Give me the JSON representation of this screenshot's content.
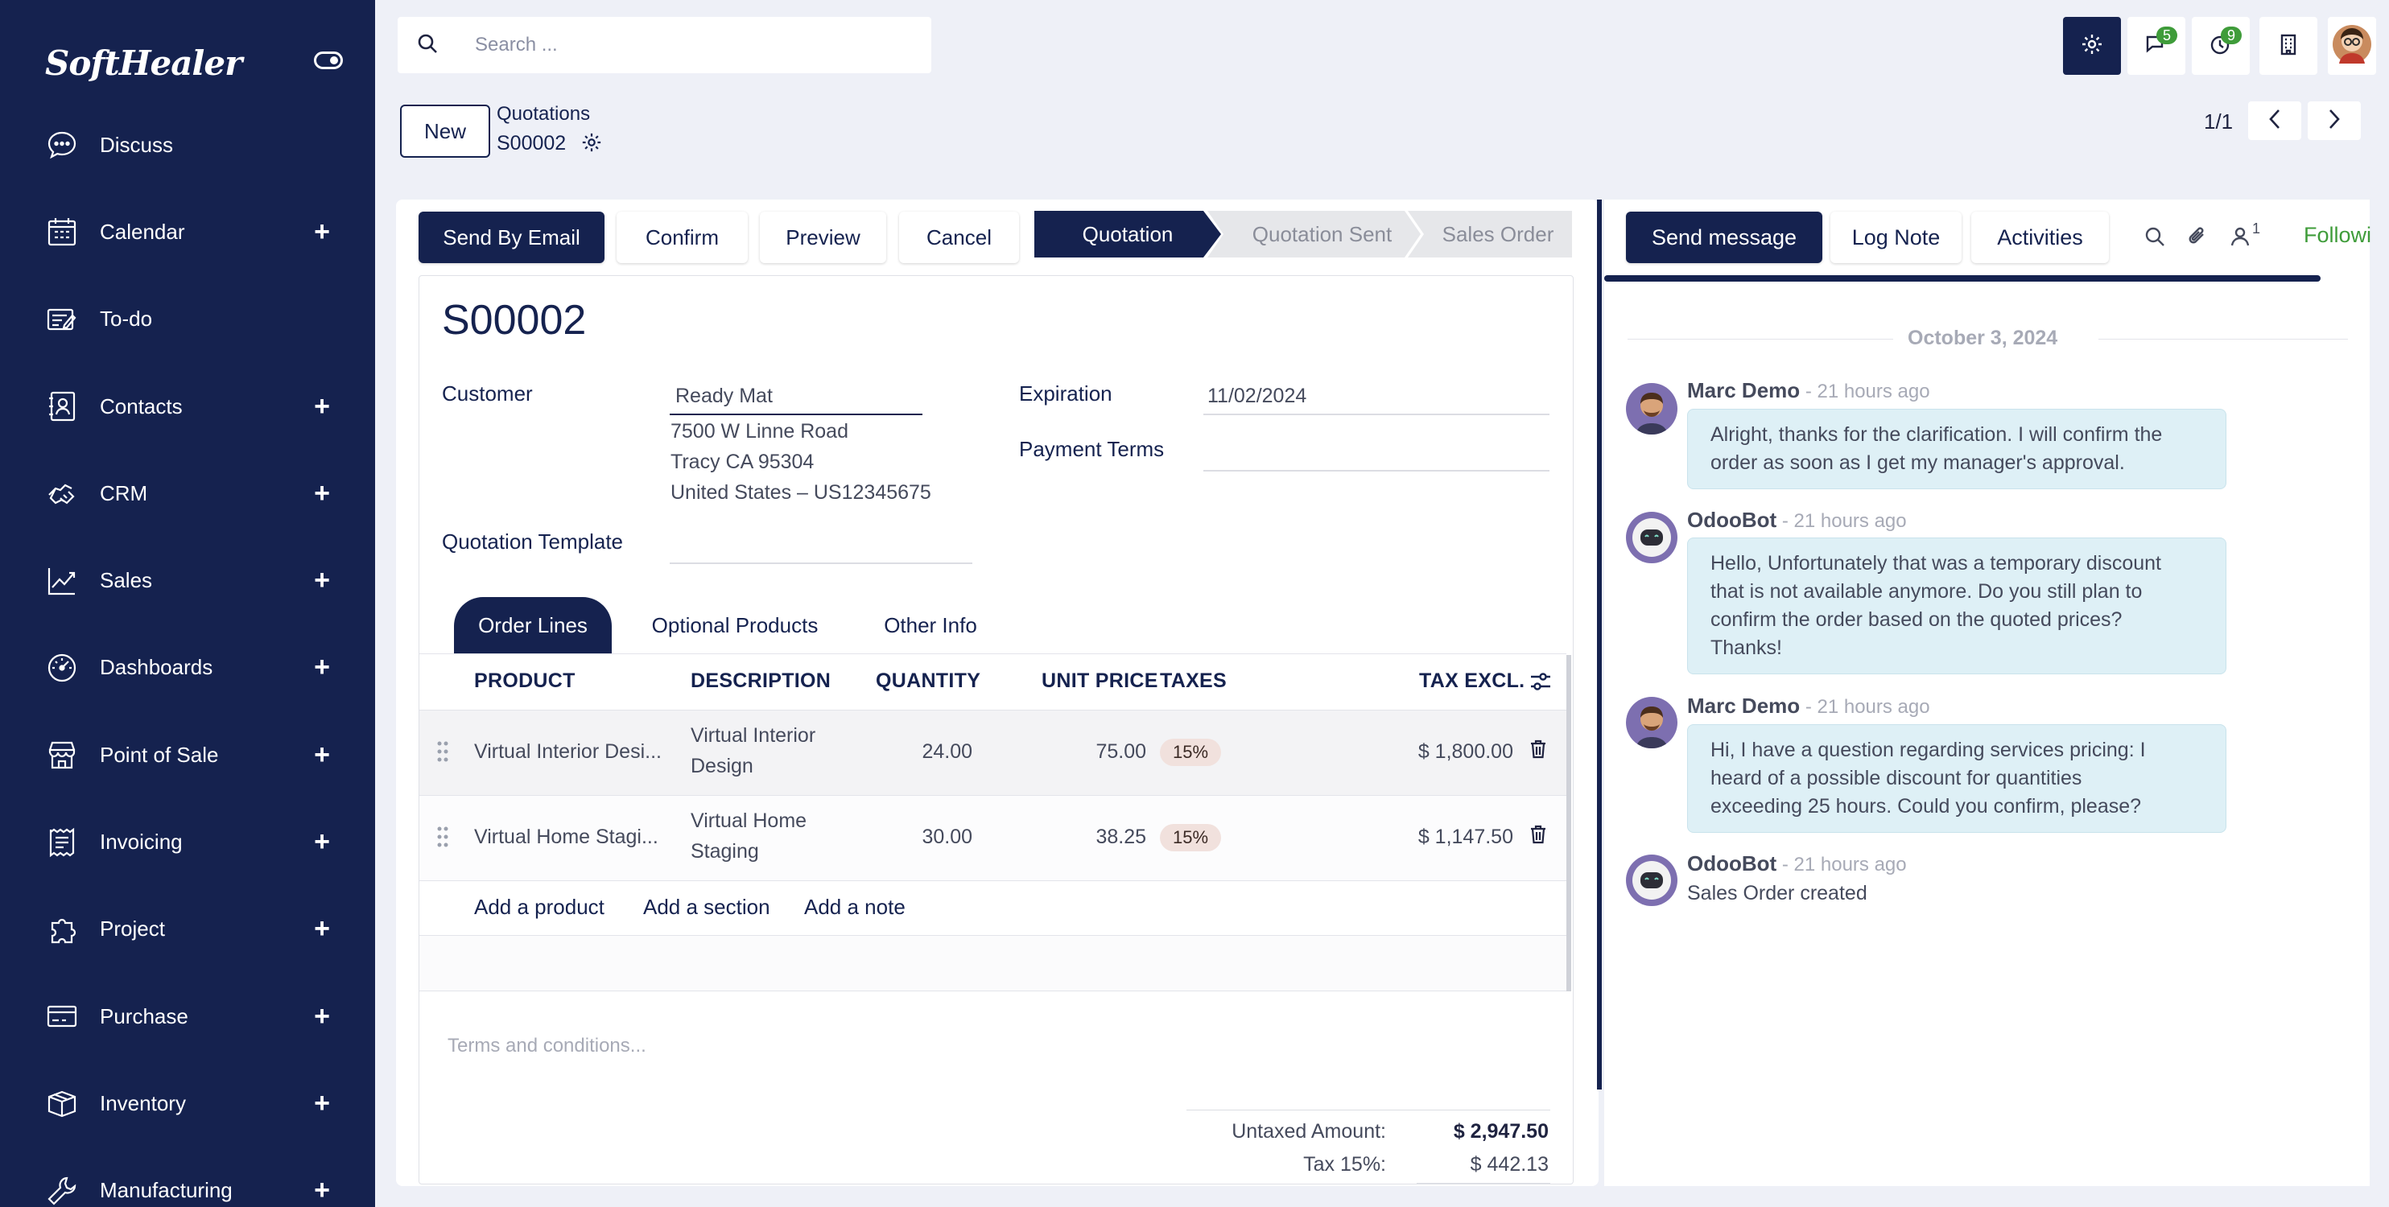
{
  "brand": "SoftHealer",
  "sidebar": {
    "items": [
      {
        "label": "Discuss",
        "icon": "discuss-icon",
        "plus": ""
      },
      {
        "label": "Calendar",
        "icon": "calendar-icon",
        "plus": "+"
      },
      {
        "label": "To-do",
        "icon": "todo-icon",
        "plus": ""
      },
      {
        "label": "Contacts",
        "icon": "contacts-icon",
        "plus": "+"
      },
      {
        "label": "CRM",
        "icon": "crm-icon",
        "plus": "+"
      },
      {
        "label": "Sales",
        "icon": "sales-icon",
        "plus": "+"
      },
      {
        "label": "Dashboards",
        "icon": "dashboard-icon",
        "plus": "+"
      },
      {
        "label": "Point of Sale",
        "icon": "store-icon",
        "plus": "+"
      },
      {
        "label": "Invoicing",
        "icon": "invoice-icon",
        "plus": "+"
      },
      {
        "label": "Project",
        "icon": "puzzle-icon",
        "plus": "+"
      },
      {
        "label": "Purchase",
        "icon": "card-icon",
        "plus": "+"
      },
      {
        "label": "Inventory",
        "icon": "box-icon",
        "plus": "+"
      },
      {
        "label": "Manufacturing",
        "icon": "wrench-icon",
        "plus": "+"
      }
    ]
  },
  "search": {
    "placeholder": "Search ..."
  },
  "topbar": {
    "messages_badge": "5",
    "activities_badge": "9"
  },
  "breadcrumb": {
    "new_label": "New",
    "parent": "Quotations",
    "current": "S00002"
  },
  "pager": {
    "text": "1/1"
  },
  "actions": {
    "send_email": "Send By Email",
    "confirm": "Confirm",
    "preview": "Preview",
    "cancel": "Cancel"
  },
  "statusbar": {
    "stages": [
      "Quotation",
      "Quotation Sent",
      "Sales Order"
    ],
    "active": "Quotation"
  },
  "form": {
    "title": "S00002",
    "customer_label": "Customer",
    "customer_name": "Ready Mat",
    "address_line1": "7500 W Linne Road",
    "address_line2": "Tracy CA 95304",
    "address_line3": "United States – US12345675",
    "expiration_label": "Expiration",
    "expiration_value": "11/02/2024",
    "payment_terms_label": "Payment Terms",
    "payment_terms_value": "",
    "template_label": "Quotation Template",
    "template_value": ""
  },
  "tabs": [
    "Order Lines",
    "Optional Products",
    "Other Info"
  ],
  "order_lines": {
    "headers": {
      "product": "PRODUCT",
      "description": "DESCRIPTION",
      "quantity": "QUANTITY",
      "unit_price": "UNIT PRICE",
      "taxes": "TAXES",
      "tax_excl": "TAX EXCL."
    },
    "rows": [
      {
        "product": "Virtual Interior Desi...",
        "desc1": "Virtual Interior",
        "desc2": "Design",
        "quantity": "24.00",
        "unit_price": "75.00",
        "tax": "15%",
        "subtotal": "$ 1,800.00"
      },
      {
        "product": "Virtual Home Stagi...",
        "desc1": "Virtual Home",
        "desc2": "Staging",
        "quantity": "30.00",
        "unit_price": "38.25",
        "tax": "15%",
        "subtotal": "$ 1,147.50"
      }
    ],
    "add_product": "Add a product",
    "add_section": "Add a section",
    "add_note": "Add a note"
  },
  "terms_placeholder": "Terms and conditions...",
  "totals": {
    "untaxed_label": "Untaxed Amount:",
    "untaxed_value": "$ 2,947.50",
    "tax_label": "Tax 15%:",
    "tax_value": "$ 442.13"
  },
  "chatter": {
    "send_message": "Send message",
    "log_note": "Log Note",
    "activities": "Activities",
    "followers_count": "1",
    "following": "Followi",
    "date": "October 3, 2024",
    "messages": [
      {
        "author": "Marc Demo",
        "ago": " - 21 hours ago",
        "lines": [
          "Alright, thanks for the clarification. I will confirm the",
          "order as soon as I get my manager's approval."
        ]
      },
      {
        "author": "OdooBot",
        "ago": " - 21 hours ago",
        "lines": [
          "Hello, Unfortunately that was a temporary discount",
          "that is not available anymore. Do you still plan to",
          "confirm the order based on the quoted prices?",
          "Thanks!"
        ]
      },
      {
        "author": "Marc Demo",
        "ago": " - 21 hours ago",
        "lines": [
          "Hi, I have a question regarding services pricing: I",
          "heard of a possible discount for quantities",
          "exceeding 25 hours. Could you confirm, please?"
        ]
      },
      {
        "author": "OdooBot",
        "ago": " - 21 hours ago",
        "text": "Sales Order created"
      }
    ]
  },
  "colors": {
    "brand_navy": "#15224f",
    "accent_green": "#3f9c3a",
    "bubble": "#def0f6",
    "page_bg": "#eef0f7"
  }
}
